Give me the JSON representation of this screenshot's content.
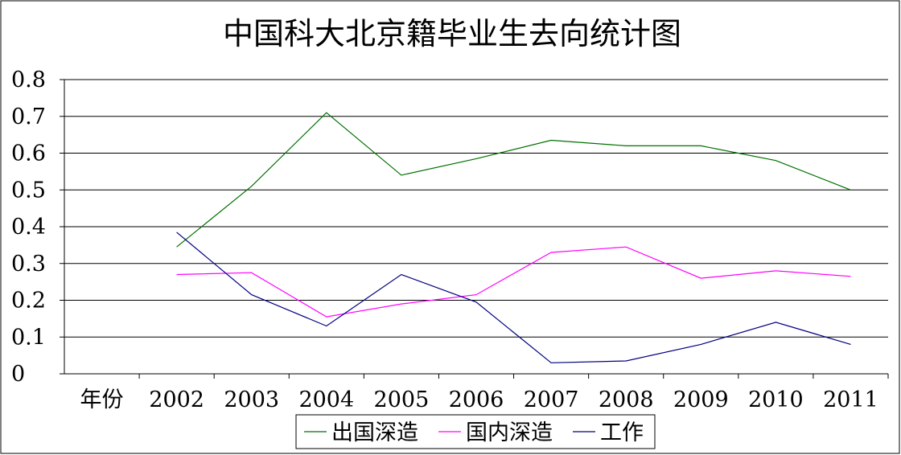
{
  "chart_data": {
    "type": "line",
    "title": "中国科大北京籍毕业生去向统计图",
    "x_title": "年份",
    "categories": [
      "2002",
      "2003",
      "2004",
      "2005",
      "2006",
      "2007",
      "2008",
      "2009",
      "2010",
      "2011"
    ],
    "ylim": [
      0,
      0.8
    ],
    "yticks": [
      "0",
      "0.1",
      "0.2",
      "0.3",
      "0.4",
      "0.5",
      "0.6",
      "0.7",
      "0.8"
    ],
    "grid": true,
    "legend_position": "bottom",
    "series": [
      {
        "name": "出国深造",
        "color": "#007000",
        "values": [
          0.345,
          0.51,
          0.71,
          0.54,
          0.585,
          0.635,
          0.62,
          0.62,
          0.58,
          0.5
        ]
      },
      {
        "name": "国内深造",
        "color": "#ff00ff",
        "values": [
          0.27,
          0.275,
          0.155,
          0.19,
          0.215,
          0.33,
          0.345,
          0.26,
          0.28,
          0.265
        ]
      },
      {
        "name": "工作",
        "color": "#000080",
        "values": [
          0.385,
          0.215,
          0.13,
          0.27,
          0.195,
          0.03,
          0.035,
          0.08,
          0.14,
          0.08
        ]
      }
    ]
  }
}
